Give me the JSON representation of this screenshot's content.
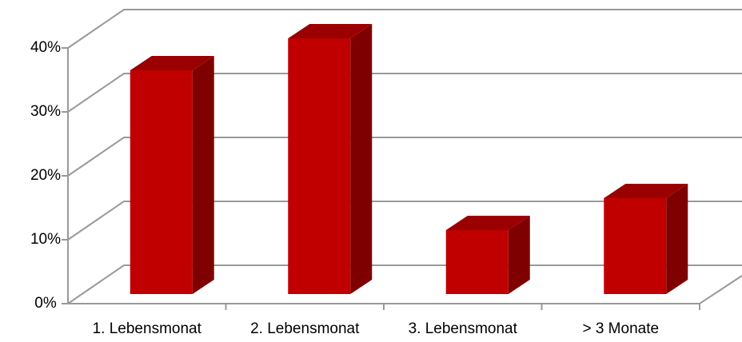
{
  "chart_data": {
    "type": "bar3d",
    "categories": [
      "1. Lebensmonat",
      "2. Lebensmonat",
      "3. Lebensmonat",
      "> 3 Monate"
    ],
    "values": [
      35,
      40,
      10,
      15
    ],
    "color": "#c00000",
    "ylim": [
      0,
      40
    ],
    "yticks": [
      {
        "value": 0,
        "label": "0%"
      },
      {
        "value": 10,
        "label": "10%"
      },
      {
        "value": 20,
        "label": "20%"
      },
      {
        "value": 30,
        "label": "30%"
      },
      {
        "value": 40,
        "label": "40%"
      }
    ],
    "grid": true
  }
}
